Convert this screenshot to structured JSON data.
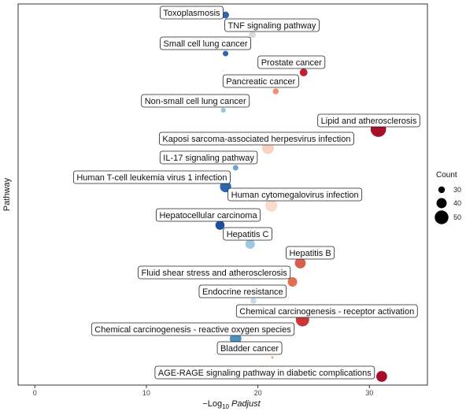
{
  "chart_data": {
    "type": "scatter",
    "title": "",
    "xlabel_prefix": "−Log",
    "xlabel_sub": "10",
    "xlabel_var": "Padjust",
    "ylabel": "Pathway",
    "xlim": [
      -1.5,
      35.2
    ],
    "xticks": [
      0,
      10,
      20,
      30
    ],
    "grid": false,
    "legend": {
      "title": "Count",
      "placement": "right",
      "entries": [
        {
          "label": "30",
          "count": 30
        },
        {
          "label": "40",
          "count": 40
        },
        {
          "label": "50",
          "count": 50
        }
      ]
    },
    "points": [
      {
        "pathway": "Toxoplasmosis",
        "x": 17.1,
        "count": 31,
        "color": "#2c67ad"
      },
      {
        "pathway": "TNF signaling pathway",
        "x": 19.5,
        "count": 31,
        "color": "#d9d9d9"
      },
      {
        "pathway": "Small cell lung cancer",
        "x": 17.1,
        "count": 27,
        "color": "#2c67ad"
      },
      {
        "pathway": "Prostate cancer",
        "x": 24.1,
        "count": 33,
        "color": "#c02030"
      },
      {
        "pathway": "Pancreatic cancer",
        "x": 21.6,
        "count": 28,
        "color": "#ef9070"
      },
      {
        "pathway": "Non-small cell lung cancer",
        "x": 16.9,
        "count": 25,
        "color": "#92c5de"
      },
      {
        "pathway": "Lipid and atherosclerosis",
        "x": 30.8,
        "count": 55,
        "color": "#a50f2a"
      },
      {
        "pathway": "Kaposi sarcoma-associated herpesvirus infection",
        "x": 20.9,
        "count": 45,
        "color": "#f8d3c2"
      },
      {
        "pathway": "IL-17 signaling pathway",
        "x": 18.0,
        "count": 27,
        "color": "#6ba6d2"
      },
      {
        "pathway": "Human T-cell leukemia virus 1 infection",
        "x": 17.1,
        "count": 43,
        "color": "#2c67ad"
      },
      {
        "pathway": "Human cytomegalovirus infection",
        "x": 21.2,
        "count": 46,
        "color": "#f9dccb"
      },
      {
        "pathway": "Hepatocellular carcinoma",
        "x": 16.6,
        "count": 37,
        "color": "#1b4f9c"
      },
      {
        "pathway": "Hepatitis C",
        "x": 19.3,
        "count": 38,
        "color": "#9ecae1"
      },
      {
        "pathway": "Hepatitis B",
        "x": 23.8,
        "count": 42,
        "color": "#d6604d"
      },
      {
        "pathway": "Fluid shear stress and atherosclerosis",
        "x": 23.1,
        "count": 38,
        "color": "#e07050"
      },
      {
        "pathway": "Endocrine resistance",
        "x": 19.6,
        "count": 28,
        "color": "#c6dbef"
      },
      {
        "pathway": "Chemical carcinogenesis - receptor activation",
        "x": 24.0,
        "count": 49,
        "color": "#c9373a"
      },
      {
        "pathway": "Chemical carcinogenesis - reactive oxygen species",
        "x": 18.0,
        "count": 44,
        "color": "#4a90c2"
      },
      {
        "pathway": "Bladder cancer",
        "x": 21.3,
        "count": 18,
        "color": "#f4a582"
      },
      {
        "pathway": "AGE-RAGE signaling pathway in diabetic complications",
        "x": 31.1,
        "count": 42,
        "color": "#a50f2a"
      }
    ]
  }
}
